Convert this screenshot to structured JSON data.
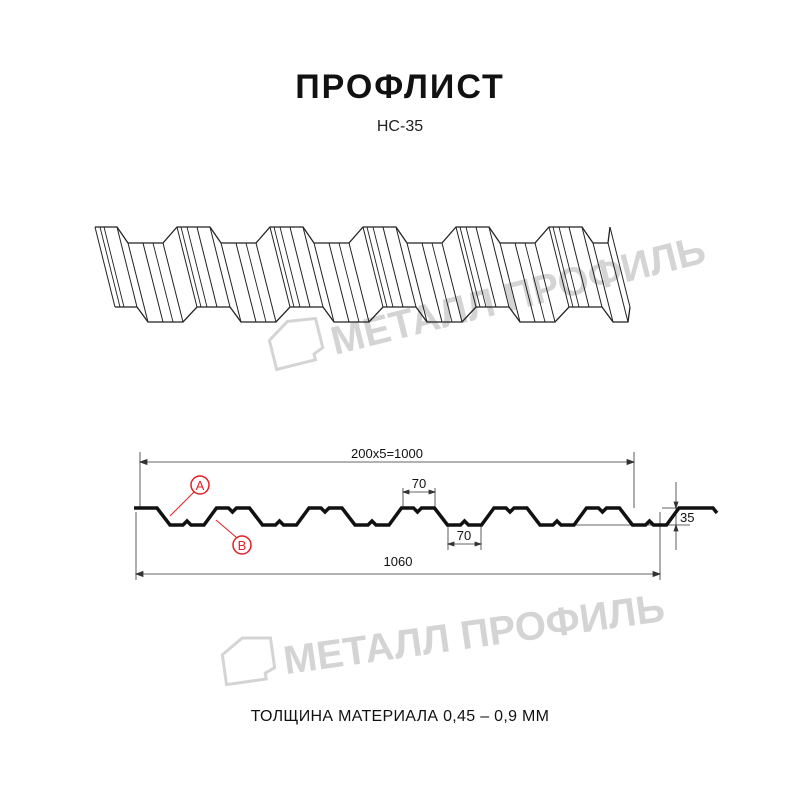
{
  "header": {
    "title": "ПРОФЛИСТ",
    "subtitle": "НС-35"
  },
  "watermark": {
    "text": "МЕТАЛЛ ПРОФИЛЬ"
  },
  "drawing": {
    "pitch_label": "200x5=1000",
    "crest_width_label": "70",
    "valley_width_label": "70",
    "height_label": "35",
    "total_width_label": "1060",
    "marker_a": "A",
    "marker_b": "B",
    "marker_color": "#e31e24"
  },
  "footer": {
    "thickness": "ТОЛЩИНА МАТЕРИАЛА 0,45 – 0,9 ММ"
  }
}
